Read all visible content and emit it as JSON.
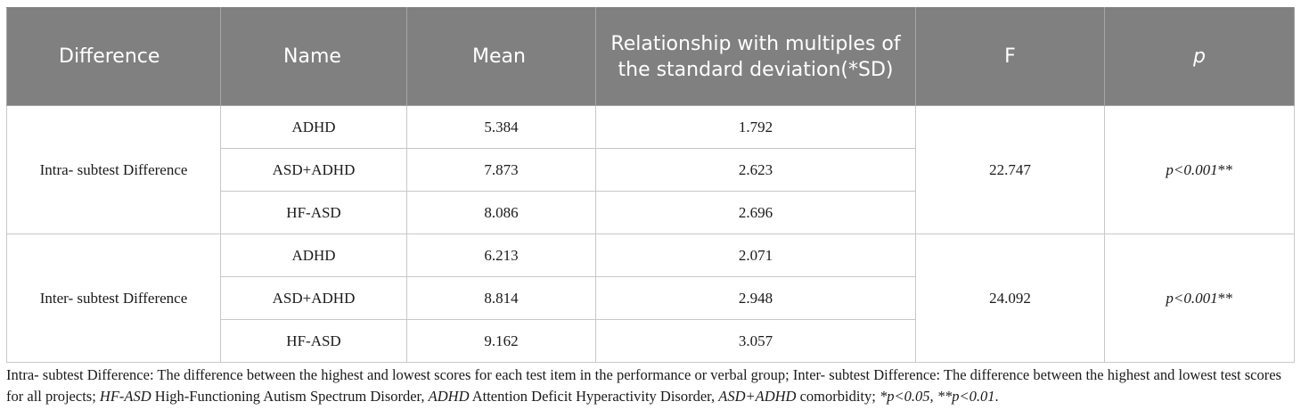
{
  "table": {
    "headers": {
      "difference": "Difference",
      "name": "Name",
      "mean": "Mean",
      "relationship": "Relationship with multiples of the standard deviation(*SD)",
      "f": "F",
      "p": "p"
    },
    "groups": [
      {
        "label": "Intra- subtest Difference",
        "f": "22.747",
        "p": "p<0.001",
        "p_suffix": "**",
        "rows": [
          {
            "name": "ADHD",
            "mean": "5.384",
            "sd": "1.792"
          },
          {
            "name": "ASD+ADHD",
            "mean": "7.873",
            "sd": "2.623"
          },
          {
            "name": "HF-ASD",
            "mean": "8.086",
            "sd": "2.696"
          }
        ]
      },
      {
        "label": "Inter- subtest Difference",
        "f": "24.092",
        "p": "p<0.001",
        "p_suffix": "**",
        "rows": [
          {
            "name": "ADHD",
            "mean": "6.213",
            "sd": "2.071"
          },
          {
            "name": "ASD+ADHD",
            "mean": "8.814",
            "sd": "2.948"
          },
          {
            "name": "HF-ASD",
            "mean": "9.162",
            "sd": "3.057"
          }
        ]
      }
    ]
  },
  "footnote": {
    "part1": "Intra- subtest Difference: The difference between the highest and lowest scores for each test item in the performance or verbal group; Inter- subtest Difference: The difference between the highest and lowest test scores for all projects; ",
    "hfasd_abbr": "HF-ASD",
    "hfasd_text": " High-Functioning Autism Spectrum Disorder, ",
    "adhd_abbr": "ADHD",
    "adhd_text": " Attention Deficit Hyperactivity Disorder, ",
    "comorb_abbr": "ASD+ADHD",
    "comorb_text": " comorbidity; ",
    "sig1": "*p<0.05",
    "sig_sep": ", ",
    "sig2": "**p<0.01",
    "end": "."
  }
}
